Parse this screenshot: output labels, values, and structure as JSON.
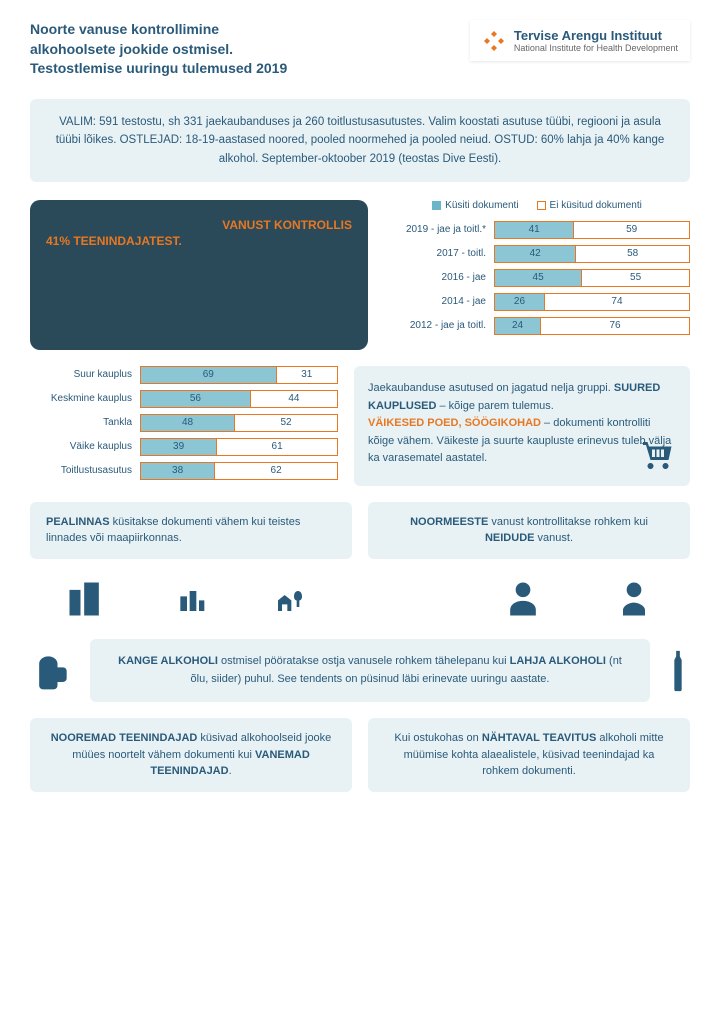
{
  "header": {
    "title_line1": "Noorte vanuse kontrollimine",
    "title_line2": "alkohoolsete jookide ostmisel.",
    "title_line3": "Testostlemise uuringu tulemused 2019",
    "logo_main": "Tervise Arengu Instituut",
    "logo_sub": "National Institute for Health Development"
  },
  "info_box": "VALIM: 591 testostu, sh 331 jaekaubanduses ja 260 toitlustusasutustes. Valim koostati asutuse tüübi, regiooni ja asula tüübi lõikes. OSTLEJAD: 18-19-aastased noored, pooled noormehed ja pooled neiud. OSTUD: 60% lahja ja 40% kange alkohol. September-oktoober 2019 (teostas Dive Eesti).",
  "dark_box": {
    "prefix": "VANUST KONTROLLIS",
    "highlight": "41% TEENINDAJATEST."
  },
  "chart1": {
    "legend_yes": "Küsiti dokumenti",
    "legend_no": "Ei küsitud dokumenti",
    "rows": [
      {
        "label": "2019 - jae ja toitl.*",
        "yes": 41,
        "no": 59
      },
      {
        "label": "2017 - toitl.",
        "yes": 42,
        "no": 58
      },
      {
        "label": "2016 - jae",
        "yes": 45,
        "no": 55
      },
      {
        "label": "2014 - jae",
        "yes": 26,
        "no": 74
      },
      {
        "label": "2012 - jae ja toitl.",
        "yes": 24,
        "no": 76
      }
    ],
    "colors": {
      "yes": "#8cc5d4",
      "no": "#ffffff",
      "border": "#e87722"
    }
  },
  "chart2": {
    "rows": [
      {
        "label": "Suur kauplus",
        "yes": 69,
        "no": 31
      },
      {
        "label": "Keskmine kauplus",
        "yes": 56,
        "no": 44
      },
      {
        "label": "Tankla",
        "yes": 48,
        "no": 52
      },
      {
        "label": "Väike kauplus",
        "yes": 39,
        "no": 61
      },
      {
        "label": "Toitlustusasutus",
        "yes": 38,
        "no": 62
      }
    ]
  },
  "store_box": {
    "line1": "Jaekaubanduse asutused on jagatud nelja gruppi.",
    "big": "SUURED KAUPLUSED",
    "line2": " – kõige parem tulemus.",
    "small": "VÄIKESED POED, SÖÖGIKOHAD",
    "line3": " – dokumenti kontrolliti kõige vähem. Väikeste ja suurte kaupluste erinevus tuleb välja ka varasematel aastatel."
  },
  "capital_box": {
    "bold": "PEALINNAS",
    "text": " küsitakse dokumenti vähem kui teistes linnades või maapiirkonnas."
  },
  "gender_box": {
    "bold1": "NOORMEESTE",
    "mid": " vanust kontrollitakse rohkem kui ",
    "bold2": "NEIDUDE",
    "end": " vanust."
  },
  "alcohol_box": {
    "b1": "KANGE ALKOHOLI",
    "m1": " ostmisel pööratakse ostja vanusele rohkem tähelepanu kui ",
    "b2": "LAHJA ALKOHOLI",
    "m2": " (nt õlu, siider) puhul. See tendents on püsinud läbi erinevate uuringu aastate."
  },
  "younger_box": {
    "b1": "NOOREMAD TEENINDAJAD",
    "m1": " küsivad alkohoolseid jooke müües noortelt vähem dokumenti kui ",
    "b2": "VANEMAD TEENINDAJAD",
    "end": "."
  },
  "notice_box": {
    "pre": "Kui ostukohas on ",
    "b": "NÄHTAVAL TEAVITUS",
    "post": " alkoholi mitte müümise kohta alaealistele, küsivad teenindajad ka rohkem dokumenti."
  }
}
